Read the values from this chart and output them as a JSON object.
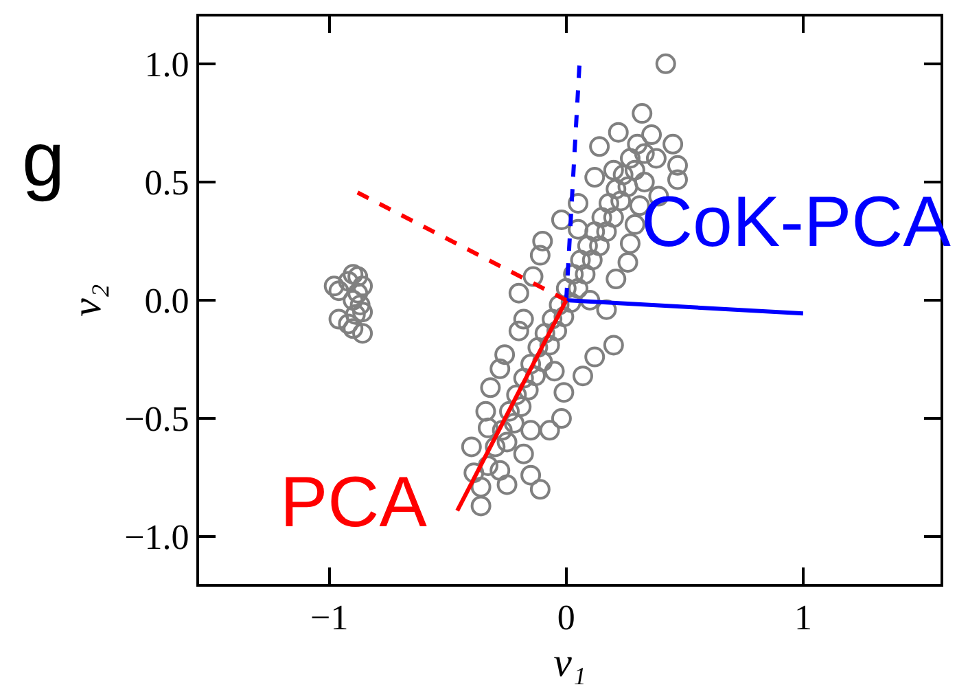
{
  "chart_data": {
    "type": "scatter",
    "xlabel": "v₁",
    "ylabel": "v₂",
    "xlim": [
      -1.55,
      1.58
    ],
    "ylim": [
      -1.2,
      1.2
    ],
    "xticks": [
      {
        "value": -1,
        "label": "−1"
      },
      0,
      1
    ],
    "yticks": [
      {
        "value": -1.0,
        "label": "−1.0"
      },
      {
        "value": -0.5,
        "label": "−0.5"
      },
      {
        "value": 0.0,
        "label": "0.0"
      },
      {
        "value": 0.5,
        "label": "0.5"
      },
      {
        "value": 1.0,
        "label": "1.0"
      }
    ],
    "annotations": [
      "g"
    ],
    "series": [
      {
        "color": "#808080",
        "marker": "circle",
        "x": [
          -0.98,
          -0.96,
          -0.92,
          -0.9,
          -0.88,
          -0.86,
          -0.88,
          -0.9,
          -0.87,
          -0.96,
          -0.92,
          -0.89,
          -0.86,
          -0.9,
          -0.86,
          0.32,
          0.22,
          0.14,
          0.45,
          0.47,
          0.47,
          0.39,
          0.12,
          0.05,
          -0.02,
          -0.1,
          -0.11,
          -0.14,
          -0.2,
          -0.18,
          -0.2,
          -0.26,
          -0.28,
          -0.32,
          -0.34,
          -0.33,
          -0.4,
          -0.39,
          -0.36,
          -0.36,
          -0.25,
          -0.15,
          -0.11,
          -0.18,
          -0.07,
          -0.02,
          -0.01,
          0.07,
          0.12,
          0.2,
          0.17,
          0.21,
          0.26,
          0.27,
          0.29,
          0.31,
          0.33,
          0.42,
          -0.3,
          -0.27,
          -0.25,
          -0.24,
          -0.22,
          -0.21,
          -0.19,
          -0.18,
          -0.16,
          -0.15,
          -0.13,
          -0.12,
          -0.1,
          -0.09,
          -0.07,
          -0.06,
          -0.04,
          -0.03,
          -0.01,
          0.0,
          0.02,
          0.03,
          0.05,
          0.06,
          0.08,
          0.09,
          0.11,
          0.12,
          0.14,
          0.15,
          0.17,
          0.18,
          0.2,
          0.21,
          0.23,
          0.24,
          0.26,
          0.27,
          0.29,
          0.3,
          0.33,
          0.36,
          0.38,
          -0.33,
          -0.28,
          -0.05,
          0.1,
          -0.15,
          0.05,
          0.2
        ],
        "values": [
          0.06,
          0.04,
          0.08,
          0.11,
          0.1,
          0.06,
          0.03,
          0.0,
          -0.02,
          -0.08,
          -0.1,
          -0.06,
          -0.05,
          -0.12,
          -0.14,
          0.79,
          0.71,
          0.65,
          0.66,
          0.57,
          0.51,
          0.44,
          0.52,
          0.41,
          0.34,
          0.25,
          0.19,
          0.1,
          0.03,
          -0.08,
          -0.13,
          -0.23,
          -0.29,
          -0.37,
          -0.47,
          -0.54,
          -0.62,
          -0.73,
          -0.79,
          -0.87,
          -0.78,
          -0.74,
          -0.8,
          -0.65,
          -0.55,
          -0.5,
          -0.39,
          -0.32,
          -0.24,
          -0.19,
          -0.04,
          0.09,
          0.16,
          0.24,
          0.32,
          0.4,
          0.5,
          1.0,
          -0.62,
          -0.55,
          -0.6,
          -0.47,
          -0.52,
          -0.4,
          -0.45,
          -0.33,
          -0.38,
          -0.27,
          -0.32,
          -0.2,
          -0.26,
          -0.14,
          -0.19,
          -0.08,
          -0.13,
          -0.02,
          -0.07,
          0.05,
          -0.01,
          0.11,
          0.05,
          0.17,
          0.11,
          0.23,
          0.17,
          0.29,
          0.23,
          0.35,
          0.29,
          0.41,
          0.35,
          0.47,
          0.42,
          0.53,
          0.48,
          0.6,
          0.55,
          0.66,
          0.62,
          0.7,
          0.6,
          -0.7,
          -0.72,
          -0.3,
          0.0,
          -0.55,
          0.3,
          0.55
        ]
      },
      {
        "type": "line",
        "color": "#0000ff",
        "line_style": "dashed",
        "x": [
          0,
          0.056
        ],
        "values": [
          0,
          1.0
        ]
      },
      {
        "type": "line",
        "name": "CoK-PCA",
        "color": "#0000ff",
        "line_style": "solid",
        "x": [
          0,
          1.0
        ],
        "values": [
          0,
          -0.056
        ]
      },
      {
        "type": "line",
        "color": "#ff0000",
        "line_style": "dashed",
        "x": [
          0,
          -0.89
        ],
        "values": [
          0,
          0.46
        ]
      },
      {
        "type": "line",
        "name": "PCA",
        "color": "#ff0000",
        "line_style": "solid",
        "x": [
          0,
          -0.46
        ],
        "values": [
          0,
          -0.89
        ]
      }
    ]
  }
}
